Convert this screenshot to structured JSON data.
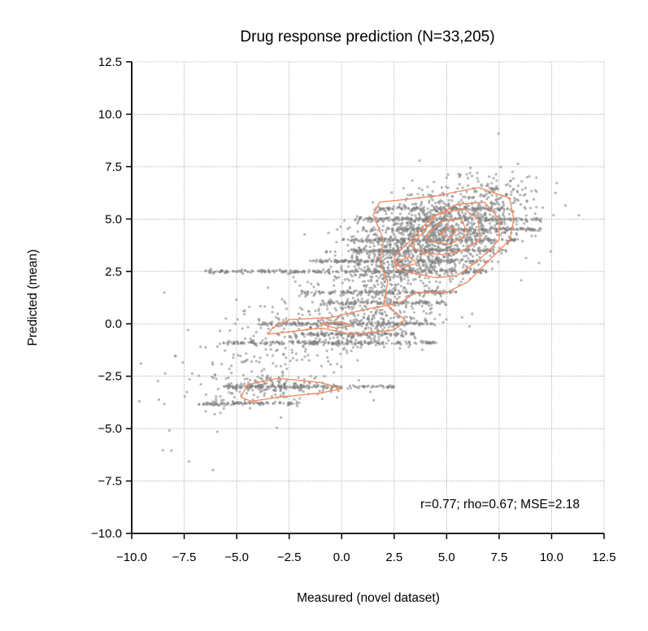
{
  "chart_data": {
    "type": "scatter",
    "title": "Drug response prediction (N=33,205)",
    "xlabel": "Measured (novel dataset)",
    "ylabel": "Predicted (mean)",
    "xlim": [
      -10.0,
      12.5
    ],
    "ylim": [
      -10.0,
      12.5
    ],
    "xticks": [
      "−10.0",
      "−7.5",
      "−5.0",
      "−2.5",
      "0.0",
      "2.5",
      "5.0",
      "7.5",
      "10.0",
      "12.5"
    ],
    "yticks": [
      "−10.0",
      "−7.5",
      "−5.0",
      "−2.5",
      "0.0",
      "2.5",
      "5.0",
      "7.5",
      "10.0",
      "12.5"
    ],
    "xtick_values": [
      -10.0,
      -7.5,
      -5.0,
      -2.5,
      0.0,
      2.5,
      5.0,
      7.5,
      10.0,
      12.5
    ],
    "ytick_values": [
      -10.0,
      -7.5,
      -5.0,
      -2.5,
      0.0,
      2.5,
      5.0,
      7.5,
      10.0,
      12.5
    ],
    "grid": true,
    "annotation": "r=0.77; rho=0.67; MSE=2.18",
    "point_color": "#7f7f7f",
    "contour_color": "#f08c64",
    "clusters": [
      {
        "cx": 4.5,
        "cy": 4.2,
        "sx": 1.8,
        "sy": 1.2,
        "rho": 0.3,
        "n": 900
      },
      {
        "cx": 2.5,
        "cy": 2.8,
        "sx": 1.6,
        "sy": 1.1,
        "rho": 0.3,
        "n": 500
      },
      {
        "cx": 0.5,
        "cy": 0.0,
        "sx": 2.0,
        "sy": 0.8,
        "rho": 0.3,
        "n": 350
      },
      {
        "cx": -3.0,
        "cy": -3.0,
        "sx": 1.6,
        "sy": 0.3,
        "rho": 0.0,
        "n": 160
      },
      {
        "cx": -3.5,
        "cy": -1.5,
        "sx": 2.5,
        "sy": 1.8,
        "rho": 0.6,
        "n": 220
      },
      {
        "cx": 7.0,
        "cy": 5.5,
        "sx": 1.3,
        "sy": 1.0,
        "rho": 0.2,
        "n": 200
      }
    ],
    "bands": [
      {
        "y": 5.5,
        "x0": 1.5,
        "x1": 8.0
      },
      {
        "y": 5.0,
        "x0": 0.5,
        "x1": 9.5
      },
      {
        "y": 4.5,
        "x0": 1.0,
        "x1": 9.5
      },
      {
        "y": 4.0,
        "x0": 0.0,
        "x1": 8.5
      },
      {
        "y": 3.5,
        "x0": 0.5,
        "x1": 8.0
      },
      {
        "y": 3.0,
        "x0": -1.5,
        "x1": 7.0
      },
      {
        "y": 2.5,
        "x0": -6.5,
        "x1": 7.0
      },
      {
        "y": 1.5,
        "x0": -2.0,
        "x1": 5.5
      },
      {
        "y": 1.0,
        "x0": -1.0,
        "x1": 5.0
      },
      {
        "y": 0.0,
        "x0": -4.0,
        "x1": 4.5
      },
      {
        "y": -0.5,
        "x0": -2.0,
        "x1": 3.5
      },
      {
        "y": -0.9,
        "x0": -6.0,
        "x1": 4.5
      },
      {
        "y": -3.0,
        "x0": -5.5,
        "x1": 2.5
      },
      {
        "y": -3.8,
        "x0": -7.0,
        "x1": -2.0
      }
    ],
    "contours": [
      [
        [
          -3.5,
          -0.5
        ],
        [
          -1.0,
          -0.2
        ],
        [
          0.5,
          -0.5
        ],
        [
          2.5,
          -0.3
        ],
        [
          3.0,
          0.2
        ],
        [
          2.0,
          1.0
        ],
        [
          2.2,
          2.0
        ],
        [
          1.8,
          3.0
        ],
        [
          2.0,
          4.0
        ],
        [
          1.5,
          5.2
        ],
        [
          1.8,
          5.8
        ],
        [
          4.5,
          6.1
        ],
        [
          6.5,
          6.5
        ],
        [
          8.0,
          6.0
        ],
        [
          8.2,
          5.0
        ],
        [
          8.0,
          4.0
        ],
        [
          7.0,
          3.0
        ],
        [
          6.0,
          2.0
        ],
        [
          5.0,
          1.5
        ],
        [
          3.5,
          1.5
        ],
        [
          2.8,
          1.0
        ],
        [
          1.2,
          0.7
        ],
        [
          -0.5,
          0.3
        ],
        [
          -2.5,
          0.2
        ],
        [
          -3.3,
          -0.2
        ]
      ],
      [
        [
          -4.8,
          -3.5
        ],
        [
          -4.5,
          -2.9
        ],
        [
          -3.0,
          -2.6
        ],
        [
          -1.0,
          -2.8
        ],
        [
          0.0,
          -3.1
        ],
        [
          -1.0,
          -3.3
        ],
        [
          -3.0,
          -3.5
        ],
        [
          -4.3,
          -3.7
        ]
      ],
      [
        [
          2.5,
          3.2
        ],
        [
          3.5,
          4.2
        ],
        [
          4.2,
          5.0
        ],
        [
          5.5,
          5.7
        ],
        [
          6.8,
          5.8
        ],
        [
          7.5,
          5.0
        ],
        [
          7.5,
          4.0
        ],
        [
          6.5,
          3.0
        ],
        [
          5.5,
          2.3
        ],
        [
          4.5,
          2.2
        ],
        [
          3.5,
          2.4
        ],
        [
          2.6,
          2.6
        ]
      ],
      [
        [
          3.3,
          3.7
        ],
        [
          4.0,
          4.5
        ],
        [
          4.5,
          5.2
        ],
        [
          5.8,
          5.5
        ],
        [
          6.5,
          5.0
        ],
        [
          6.6,
          4.0
        ],
        [
          5.8,
          3.5
        ],
        [
          4.8,
          3.3
        ],
        [
          3.8,
          3.4
        ]
      ],
      [
        [
          4.0,
          4.2
        ],
        [
          4.8,
          4.9
        ],
        [
          5.7,
          5.0
        ],
        [
          6.0,
          4.3
        ],
        [
          5.2,
          3.8
        ],
        [
          4.3,
          3.9
        ]
      ],
      [
        [
          4.7,
          4.3
        ],
        [
          5.1,
          4.6
        ],
        [
          5.5,
          4.5
        ],
        [
          5.2,
          4.1
        ]
      ],
      [
        [
          2.5,
          2.9
        ],
        [
          3.2,
          3.2
        ],
        [
          3.6,
          2.9
        ],
        [
          3.0,
          2.7
        ]
      ],
      [
        [
          -1.0,
          0.0
        ],
        [
          0.0,
          0.1
        ],
        [
          0.5,
          -0.1
        ],
        [
          -0.3,
          -0.2
        ]
      ]
    ]
  }
}
